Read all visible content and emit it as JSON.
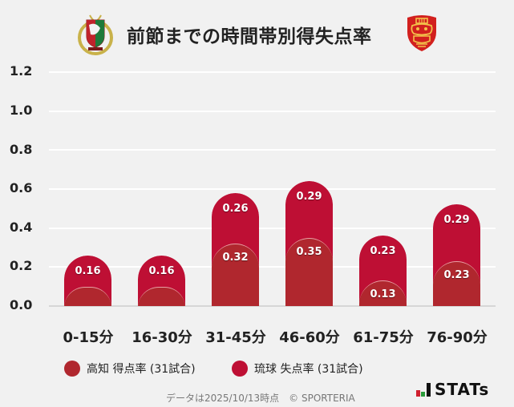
{
  "header": {
    "title": "前節までの時間帯別得失点率",
    "home_logo": "kochi-united-crest-icon",
    "away_logo": "fc-ryukyu-shisa-crest-icon"
  },
  "chart_data": {
    "type": "bar",
    "stacked": true,
    "title": "前節までの時間帯別得失点率",
    "xlabel": "",
    "ylabel": "",
    "ylim": [
      0,
      1.2
    ],
    "yticks": [
      "1.2",
      "1.0",
      "0.8",
      "0.6",
      "0.4",
      "0.2",
      "0.0"
    ],
    "grid": true,
    "legend_position": "bottom",
    "categories": [
      "0-15分",
      "16-30分",
      "31-45分",
      "46-60分",
      "61-75分",
      "76-90分"
    ],
    "series": [
      {
        "name": "高知 得点率 (31試合)",
        "color": "#b0272e",
        "values": [
          0.1,
          0.1,
          0.32,
          0.35,
          0.13,
          0.23
        ],
        "labels": [
          "",
          "",
          "0.32",
          "0.35",
          "0.13",
          "0.23"
        ]
      },
      {
        "name": "琉球 失点率 (31試合)",
        "color": "#be0f34",
        "values": [
          0.16,
          0.16,
          0.26,
          0.29,
          0.23,
          0.29
        ],
        "labels": [
          "0.16",
          "0.16",
          "0.26",
          "0.29",
          "0.23",
          "0.29"
        ]
      }
    ]
  },
  "legend": {
    "items": [
      {
        "label": "高知 得点率 (31試合)",
        "color": "#b0272e"
      },
      {
        "label": "琉球 失点率 (31試合)",
        "color": "#be0f34"
      }
    ]
  },
  "footer": {
    "note": "データは2025/10/13時点　© SPORTERIA",
    "brand": "STATs"
  }
}
